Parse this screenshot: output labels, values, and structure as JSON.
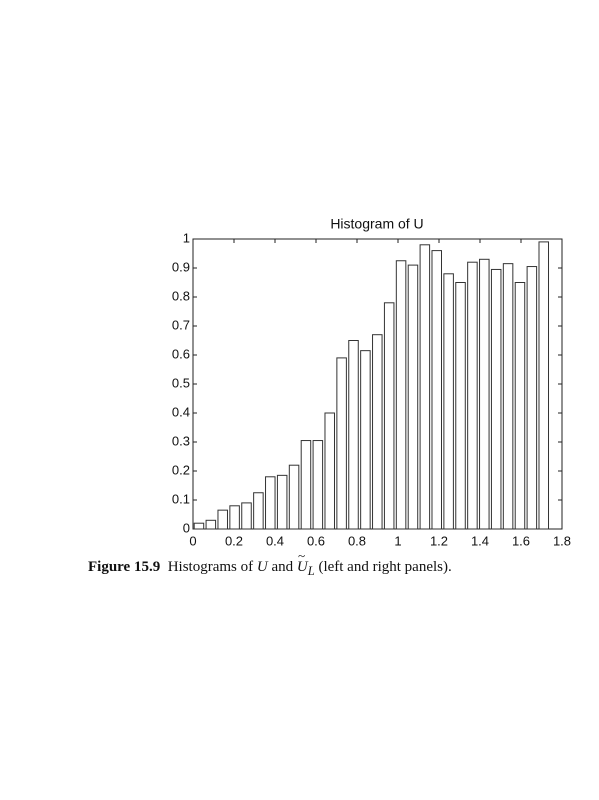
{
  "chart_data": {
    "type": "histogram",
    "title": "Histogram of U",
    "bins": [
      0,
      0.058,
      0.116,
      0.174,
      0.232,
      0.29,
      0.348,
      0.406,
      0.464,
      0.522,
      0.58,
      0.638,
      0.696,
      0.754,
      0.812,
      0.87,
      0.928,
      0.986,
      1.044,
      1.102,
      1.16,
      1.218,
      1.276,
      1.334,
      1.392,
      1.45,
      1.508,
      1.566,
      1.624,
      1.682,
      1.74
    ],
    "values": [
      0.02,
      0.03,
      0.065,
      0.08,
      0.09,
      0.125,
      0.18,
      0.185,
      0.22,
      0.305,
      0.305,
      0.4,
      0.59,
      0.65,
      0.615,
      0.67,
      0.78,
      0.925,
      0.91,
      0.98,
      0.96,
      0.88,
      0.85,
      0.92,
      0.93,
      0.895,
      0.915,
      0.85,
      0.905,
      0.99
    ],
    "color": "#ffffff",
    "xlim": [
      0,
      1.8
    ],
    "xticks": [
      0,
      0.2,
      0.4,
      0.6,
      0.8,
      1,
      1.2,
      1.4,
      1.6,
      1.8
    ],
    "ylim": [
      0,
      1
    ],
    "yticks": [
      0,
      0.1,
      0.2,
      0.3,
      0.4,
      0.5,
      0.6,
      0.7,
      0.8,
      0.9,
      1
    ]
  },
  "caption": {
    "label": "Figure 15.9",
    "parts": [
      "Histograms of",
      "U",
      "and",
      "U",
      "L",
      "(left and right panels)."
    ]
  }
}
